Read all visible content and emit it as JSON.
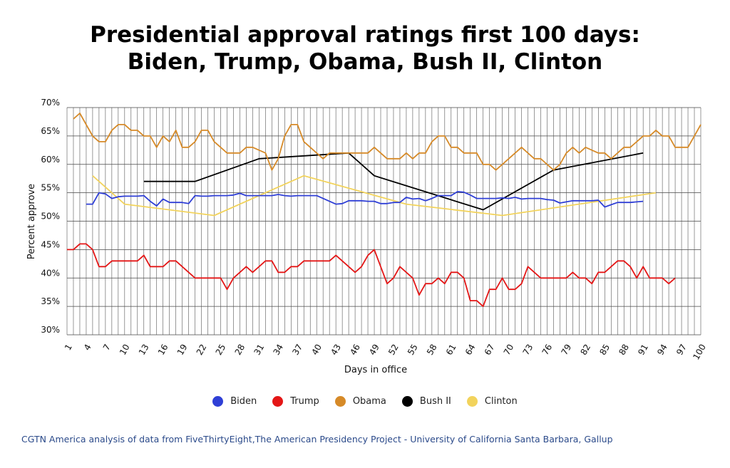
{
  "title_line1": "Presidential approval ratings first 100 days:",
  "title_line2": "Biden, Trump, Obama, Bush II, Clinton",
  "source": "CGTN America analysis of data from FiveThirtyEight,The American Presidency Project - University of California Santa Barbara, Gallup",
  "chart_data": {
    "type": "line",
    "xlabel": "Days in office",
    "ylabel": "Percent approve",
    "xlim": [
      1,
      100
    ],
    "ylim": [
      30,
      70
    ],
    "x_ticks": [
      1,
      4,
      7,
      10,
      13,
      16,
      19,
      22,
      25,
      28,
      31,
      34,
      37,
      40,
      43,
      46,
      49,
      52,
      55,
      58,
      61,
      64,
      67,
      70,
      73,
      76,
      79,
      82,
      85,
      88,
      91,
      94,
      97,
      100
    ],
    "y_ticks": [
      30,
      35,
      40,
      45,
      50,
      55,
      60,
      65,
      70
    ],
    "y_tick_labels": [
      "30%",
      "35%",
      "40%",
      "45%",
      "50%",
      "55%",
      "60%",
      "65%",
      "70%"
    ],
    "grid": true,
    "legend_position": "bottom",
    "series": [
      {
        "name": "Biden",
        "color": "#2f3fd6",
        "points": [
          [
            4,
            53
          ],
          [
            5,
            53
          ],
          [
            6,
            55
          ],
          [
            7,
            54.8
          ],
          [
            8,
            54
          ],
          [
            9,
            54.3
          ],
          [
            10,
            54.4
          ],
          [
            11,
            54.4
          ],
          [
            12,
            54.4
          ],
          [
            13,
            54.5
          ],
          [
            14,
            53.5
          ],
          [
            15,
            52.7
          ],
          [
            16,
            53.9
          ],
          [
            17,
            53.3
          ],
          [
            18,
            53.3
          ],
          [
            19,
            53.3
          ],
          [
            20,
            53.1
          ],
          [
            21,
            54.5
          ],
          [
            22,
            54.4
          ],
          [
            23,
            54.4
          ],
          [
            24,
            54.5
          ],
          [
            25,
            54.5
          ],
          [
            26,
            54.5
          ],
          [
            27,
            54.6
          ],
          [
            28,
            54.9
          ],
          [
            29,
            54.5
          ],
          [
            30,
            54.5
          ],
          [
            31,
            54.5
          ],
          [
            32,
            54.5
          ],
          [
            33,
            54.5
          ],
          [
            34,
            54.7
          ],
          [
            35,
            54.5
          ],
          [
            36,
            54.4
          ],
          [
            37,
            54.5
          ],
          [
            38,
            54.5
          ],
          [
            39,
            54.5
          ],
          [
            40,
            54.5
          ],
          [
            41,
            54
          ],
          [
            42,
            53.5
          ],
          [
            43,
            53
          ],
          [
            44,
            53.1
          ],
          [
            45,
            53.6
          ],
          [
            46,
            53.6
          ],
          [
            47,
            53.6
          ],
          [
            48,
            53.5
          ],
          [
            49,
            53.5
          ],
          [
            50,
            53.1
          ],
          [
            51,
            53.1
          ],
          [
            52,
            53.3
          ],
          [
            53,
            53.3
          ],
          [
            54,
            54.2
          ],
          [
            55,
            53.9
          ],
          [
            56,
            54
          ],
          [
            57,
            53.6
          ],
          [
            58,
            54
          ],
          [
            59,
            54.5
          ],
          [
            60,
            54.5
          ],
          [
            61,
            54.5
          ],
          [
            62,
            55.2
          ],
          [
            63,
            55.1
          ],
          [
            64,
            54.6
          ],
          [
            65,
            54
          ],
          [
            66,
            54
          ],
          [
            67,
            54
          ],
          [
            68,
            54
          ],
          [
            69,
            54.1
          ],
          [
            70,
            54
          ],
          [
            71,
            54.2
          ],
          [
            72,
            53.9
          ],
          [
            73,
            54
          ],
          [
            74,
            54
          ],
          [
            75,
            54
          ],
          [
            76,
            53.8
          ],
          [
            77,
            53.7
          ],
          [
            78,
            53.2
          ],
          [
            79,
            53.4
          ],
          [
            80,
            53.6
          ],
          [
            81,
            53.6
          ],
          [
            82,
            53.6
          ],
          [
            83,
            53.6
          ],
          [
            84,
            53.7
          ],
          [
            85,
            52.5
          ],
          [
            86,
            52.9
          ],
          [
            87,
            53.3
          ],
          [
            88,
            53.3
          ],
          [
            89,
            53.3
          ],
          [
            90,
            53.4
          ],
          [
            91,
            53.5
          ]
        ]
      },
      {
        "name": "Trump",
        "color": "#e41616",
        "points": [
          [
            1,
            45
          ],
          [
            2,
            45
          ],
          [
            3,
            46
          ],
          [
            4,
            46
          ],
          [
            5,
            45
          ],
          [
            6,
            42
          ],
          [
            7,
            42
          ],
          [
            8,
            43
          ],
          [
            9,
            43
          ],
          [
            10,
            43
          ],
          [
            11,
            43
          ],
          [
            12,
            43
          ],
          [
            13,
            44
          ],
          [
            14,
            42
          ],
          [
            15,
            42
          ],
          [
            16,
            42
          ],
          [
            17,
            43
          ],
          [
            18,
            43
          ],
          [
            19,
            42
          ],
          [
            20,
            41
          ],
          [
            21,
            40
          ],
          [
            22,
            40
          ],
          [
            23,
            40
          ],
          [
            24,
            40
          ],
          [
            25,
            40
          ],
          [
            26,
            38
          ],
          [
            27,
            40
          ],
          [
            28,
            41
          ],
          [
            29,
            42
          ],
          [
            30,
            41
          ],
          [
            31,
            42
          ],
          [
            32,
            43
          ],
          [
            33,
            43
          ],
          [
            34,
            41
          ],
          [
            35,
            41
          ],
          [
            36,
            42
          ],
          [
            37,
            42
          ],
          [
            38,
            43
          ],
          [
            39,
            43
          ],
          [
            40,
            43
          ],
          [
            41,
            43
          ],
          [
            42,
            43
          ],
          [
            43,
            44
          ],
          [
            44,
            43
          ],
          [
            45,
            42
          ],
          [
            46,
            41
          ],
          [
            47,
            42
          ],
          [
            48,
            44
          ],
          [
            49,
            45
          ],
          [
            50,
            42
          ],
          [
            51,
            39
          ],
          [
            52,
            40
          ],
          [
            53,
            42
          ],
          [
            54,
            41
          ],
          [
            55,
            40
          ],
          [
            56,
            37
          ],
          [
            57,
            39
          ],
          [
            58,
            39
          ],
          [
            59,
            40
          ],
          [
            60,
            39
          ],
          [
            61,
            41
          ],
          [
            62,
            41
          ],
          [
            63,
            40
          ],
          [
            64,
            36
          ],
          [
            65,
            36
          ],
          [
            66,
            35
          ],
          [
            67,
            38
          ],
          [
            68,
            38
          ],
          [
            69,
            40
          ],
          [
            70,
            38
          ],
          [
            71,
            38
          ],
          [
            72,
            39
          ],
          [
            73,
            42
          ],
          [
            74,
            41
          ],
          [
            75,
            40
          ],
          [
            76,
            40
          ],
          [
            77,
            40
          ],
          [
            78,
            40
          ],
          [
            79,
            40
          ],
          [
            80,
            41
          ],
          [
            81,
            40
          ],
          [
            82,
            40
          ],
          [
            83,
            39
          ],
          [
            84,
            41
          ],
          [
            85,
            41
          ],
          [
            86,
            42
          ],
          [
            87,
            43
          ],
          [
            88,
            43
          ],
          [
            89,
            42
          ],
          [
            90,
            40
          ],
          [
            91,
            42
          ],
          [
            92,
            40
          ],
          [
            93,
            40
          ],
          [
            94,
            40
          ],
          [
            95,
            39
          ],
          [
            96,
            40
          ]
        ]
      },
      {
        "name": "Obama",
        "color": "#d68a28",
        "points": [
          [
            2,
            68
          ],
          [
            3,
            69
          ],
          [
            4,
            67
          ],
          [
            5,
            65
          ],
          [
            6,
            64
          ],
          [
            7,
            64
          ],
          [
            8,
            66
          ],
          [
            9,
            67
          ],
          [
            10,
            67
          ],
          [
            11,
            66
          ],
          [
            12,
            66
          ],
          [
            13,
            65
          ],
          [
            14,
            65
          ],
          [
            15,
            63
          ],
          [
            16,
            65
          ],
          [
            17,
            64
          ],
          [
            18,
            66
          ],
          [
            19,
            63
          ],
          [
            20,
            63
          ],
          [
            21,
            64
          ],
          [
            22,
            66
          ],
          [
            23,
            66
          ],
          [
            24,
            64
          ],
          [
            25,
            63
          ],
          [
            26,
            62
          ],
          [
            27,
            62
          ],
          [
            28,
            62
          ],
          [
            29,
            63
          ],
          [
            30,
            63
          ],
          [
            31,
            62.5
          ],
          [
            32,
            62
          ],
          [
            33,
            59
          ],
          [
            34,
            61
          ],
          [
            35,
            65
          ],
          [
            36,
            67
          ],
          [
            37,
            67
          ],
          [
            38,
            64
          ],
          [
            39,
            63
          ],
          [
            40,
            62
          ],
          [
            41,
            61
          ],
          [
            42,
            62
          ],
          [
            43,
            62
          ],
          [
            44,
            62
          ],
          [
            45,
            62
          ],
          [
            46,
            62
          ],
          [
            47,
            62
          ],
          [
            48,
            62
          ],
          [
            49,
            63
          ],
          [
            50,
            62
          ],
          [
            51,
            61
          ],
          [
            52,
            61
          ],
          [
            53,
            61
          ],
          [
            54,
            62
          ],
          [
            55,
            61
          ],
          [
            56,
            62
          ],
          [
            57,
            62
          ],
          [
            58,
            64
          ],
          [
            59,
            65
          ],
          [
            60,
            65
          ],
          [
            61,
            63
          ],
          [
            62,
            63
          ],
          [
            63,
            62
          ],
          [
            64,
            62
          ],
          [
            65,
            62
          ],
          [
            66,
            60
          ],
          [
            67,
            60
          ],
          [
            68,
            59
          ],
          [
            69,
            60
          ],
          [
            70,
            61
          ],
          [
            71,
            62
          ],
          [
            72,
            63
          ],
          [
            73,
            62
          ],
          [
            74,
            61
          ],
          [
            75,
            61
          ],
          [
            76,
            60
          ],
          [
            77,
            59
          ],
          [
            78,
            60
          ],
          [
            79,
            62
          ],
          [
            80,
            63
          ],
          [
            81,
            62
          ],
          [
            82,
            63
          ],
          [
            83,
            62.5
          ],
          [
            84,
            62
          ],
          [
            85,
            62
          ],
          [
            86,
            61
          ],
          [
            87,
            62
          ],
          [
            88,
            63
          ],
          [
            89,
            63
          ],
          [
            90,
            64
          ],
          [
            91,
            65
          ],
          [
            92,
            65
          ],
          [
            93,
            66
          ],
          [
            94,
            65
          ],
          [
            95,
            65
          ],
          [
            96,
            63
          ],
          [
            97,
            63
          ],
          [
            98,
            63
          ],
          [
            99,
            65
          ],
          [
            100,
            67
          ]
        ]
      },
      {
        "name": "Bush II",
        "color": "#000000",
        "points": [
          [
            13,
            57
          ],
          [
            21,
            57
          ],
          [
            31,
            61
          ],
          [
            45,
            62
          ],
          [
            49,
            58
          ],
          [
            66,
            52
          ],
          [
            77,
            59
          ],
          [
            91,
            62
          ]
        ]
      },
      {
        "name": "Clinton",
        "color": "#f2d35c",
        "points": [
          [
            5,
            58
          ],
          [
            10,
            53
          ],
          [
            24,
            51
          ],
          [
            38,
            58
          ],
          [
            54,
            53
          ],
          [
            69,
            51
          ],
          [
            93,
            55
          ]
        ]
      }
    ]
  }
}
